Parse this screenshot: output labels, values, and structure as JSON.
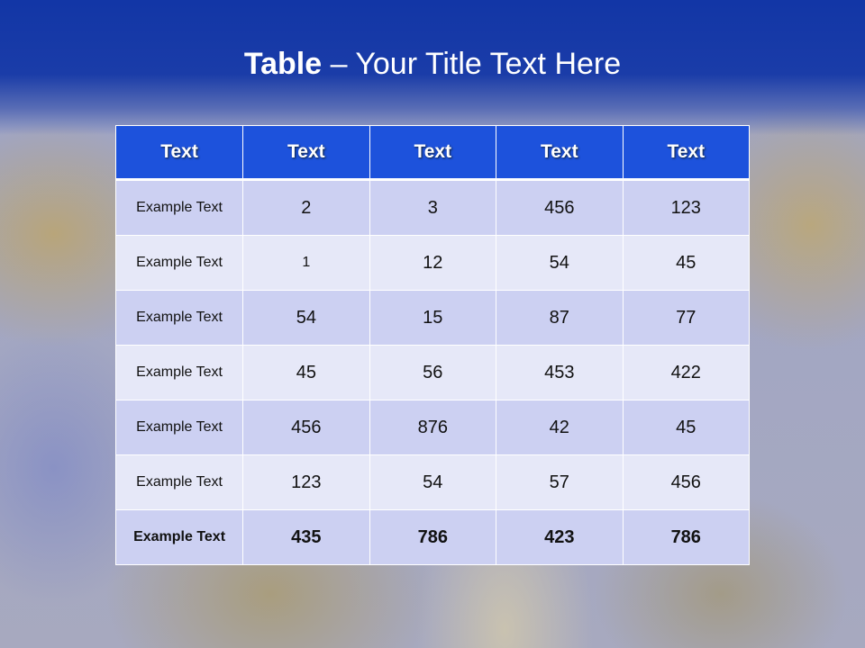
{
  "slide": {
    "title_bold": "Table",
    "title_rest": " – Your Title Text Here"
  },
  "table": {
    "headers": [
      "Text",
      "Text",
      "Text",
      "Text",
      "Text"
    ],
    "rows": [
      [
        "Example Text",
        "2",
        "3",
        "456",
        "123"
      ],
      [
        "Example Text",
        "1",
        "12",
        "54",
        "45"
      ],
      [
        "Example Text",
        "54",
        "15",
        "87",
        "77"
      ],
      [
        "Example Text",
        "45",
        "56",
        "453",
        "422"
      ],
      [
        "Example Text",
        "456",
        "876",
        "42",
        "45"
      ],
      [
        "Example Text",
        "123",
        "54",
        "57",
        "456"
      ],
      [
        "Example Text",
        "435",
        "786",
        "423",
        "786"
      ]
    ]
  },
  "colors": {
    "header": "#1d52dc",
    "row_dark": "#ccd0f2",
    "row_light": "#e6e8f8",
    "title_band": "#1236a6"
  }
}
